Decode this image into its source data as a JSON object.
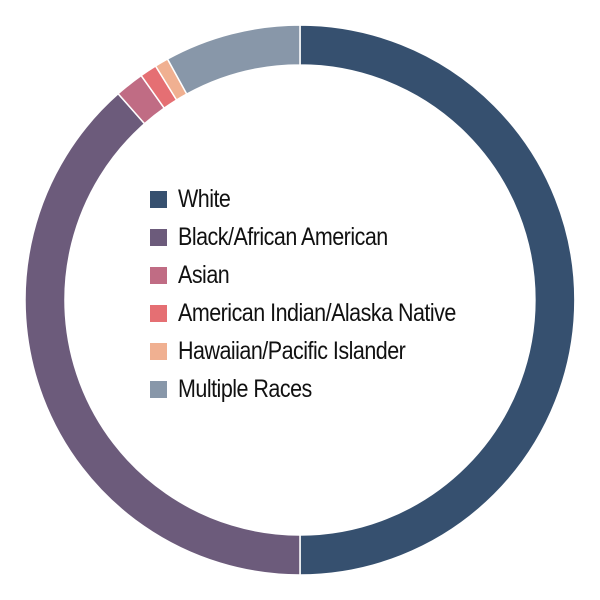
{
  "chart_data": {
    "type": "pie",
    "title": "",
    "legend_placement": "center",
    "slices": [
      {
        "label": "White",
        "value": 50.0,
        "color": "#36506f"
      },
      {
        "label": "Black/African American",
        "value": 38.5,
        "color": "#6c5b7b"
      },
      {
        "label": "Asian",
        "value": 1.7,
        "color": "#c06c84"
      },
      {
        "label": "American Indian/Alaska Native",
        "value": 1.0,
        "color": "#e56f73"
      },
      {
        "label": "Hawaiian/Pacific Islander",
        "value": 0.8,
        "color": "#f0b091"
      },
      {
        "label": "Multiple Races",
        "value": 8.0,
        "color": "#8897a9"
      }
    ]
  }
}
